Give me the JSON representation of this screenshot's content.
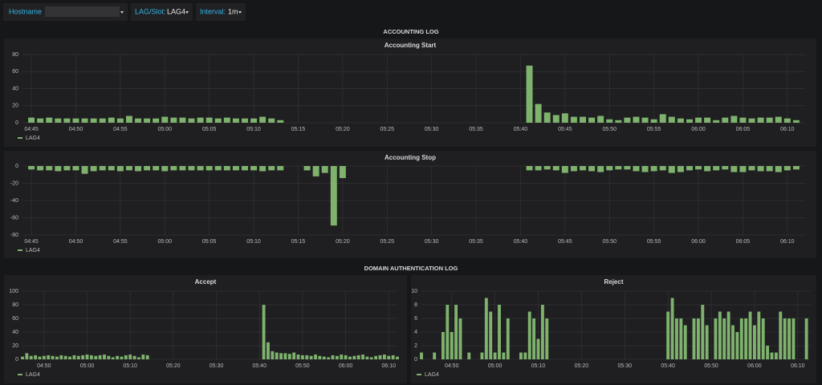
{
  "toolbar": [
    {
      "label": "Hostname"
    },
    {
      "label": "LAG/Slot:",
      "value": "LAG4"
    },
    {
      "label": "Interval:",
      "value": "1m"
    }
  ],
  "sections": [
    "ACCOUNTING LOG",
    "DOMAIN AUTHENTICATION LOG"
  ],
  "chart_data": [
    {
      "type": "bar",
      "title": "Accounting Start",
      "ylim": [
        0,
        80
      ],
      "yticks": [
        0,
        20,
        40,
        60,
        80
      ],
      "xlim": [
        "04:44",
        "06:12"
      ],
      "xticks": [
        "04:45",
        "04:50",
        "04:55",
        "05:00",
        "05:05",
        "05:10",
        "05:15",
        "05:20",
        "05:25",
        "05:30",
        "05:35",
        "05:40",
        "05:45",
        "05:50",
        "05:55",
        "06:00",
        "06:05",
        "06:10"
      ],
      "grid": true,
      "x": [
        "04:45",
        "04:46",
        "04:47",
        "04:48",
        "04:49",
        "04:50",
        "04:51",
        "04:52",
        "04:53",
        "04:54",
        "04:55",
        "04:56",
        "04:57",
        "04:58",
        "04:59",
        "05:00",
        "05:01",
        "05:02",
        "05:03",
        "05:04",
        "05:05",
        "05:06",
        "05:07",
        "05:08",
        "05:09",
        "05:10",
        "05:11",
        "05:12",
        "05:13",
        "05:41",
        "05:42",
        "05:43",
        "05:44",
        "05:45",
        "05:46",
        "05:47",
        "05:48",
        "05:49",
        "05:50",
        "05:51",
        "05:52",
        "05:53",
        "05:54",
        "05:55",
        "05:56",
        "05:57",
        "05:58",
        "05:59",
        "06:00",
        "06:01",
        "06:02",
        "06:03",
        "06:04",
        "06:05",
        "06:06",
        "06:07",
        "06:08",
        "06:09",
        "06:10",
        "06:11"
      ],
      "series": [
        {
          "name": "LAG4",
          "color": "#7eb26d",
          "values": [
            6,
            5,
            6,
            5,
            5,
            5,
            5,
            5,
            5,
            6,
            5,
            8,
            5,
            5,
            5,
            7,
            6,
            6,
            5,
            6,
            6,
            5,
            6,
            5,
            5,
            5,
            7,
            5,
            3,
            67,
            22,
            12,
            9,
            11,
            7,
            7,
            6,
            8,
            4,
            3,
            6,
            7,
            6,
            4,
            10,
            7,
            5,
            4,
            6,
            6,
            3,
            6,
            8,
            6,
            5,
            6,
            6,
            7,
            5,
            3
          ]
        }
      ]
    },
    {
      "type": "bar",
      "title": "Accounting Stop",
      "ylim": [
        -80,
        0
      ],
      "yticks": [
        0,
        -20,
        -40,
        -60,
        -80
      ],
      "xlim": [
        "04:44",
        "06:12"
      ],
      "xticks": [
        "04:45",
        "04:50",
        "04:55",
        "05:00",
        "05:05",
        "05:10",
        "05:15",
        "05:20",
        "05:25",
        "05:30",
        "05:35",
        "05:40",
        "05:45",
        "05:50",
        "05:55",
        "06:00",
        "06:05",
        "06:10"
      ],
      "grid": true,
      "x": [
        "04:45",
        "04:46",
        "04:47",
        "04:48",
        "04:49",
        "04:50",
        "04:51",
        "04:52",
        "04:53",
        "04:54",
        "04:55",
        "04:56",
        "04:57",
        "04:58",
        "04:59",
        "05:00",
        "05:01",
        "05:02",
        "05:03",
        "05:04",
        "05:05",
        "05:06",
        "05:07",
        "05:08",
        "05:09",
        "05:10",
        "05:11",
        "05:12",
        "05:13",
        "05:16",
        "05:17",
        "05:18",
        "05:19",
        "05:20",
        "05:41",
        "05:42",
        "05:43",
        "05:44",
        "05:45",
        "05:46",
        "05:47",
        "05:48",
        "05:49",
        "05:50",
        "05:51",
        "05:52",
        "05:53",
        "05:54",
        "05:55",
        "05:56",
        "05:57",
        "05:58",
        "05:59",
        "06:00",
        "06:01",
        "06:02",
        "06:03",
        "06:04",
        "06:05",
        "06:06",
        "06:07",
        "06:08",
        "06:09",
        "06:10",
        "06:11"
      ],
      "series": [
        {
          "name": "LAG4",
          "color": "#7eb26d",
          "values": [
            -4,
            -5,
            -5,
            -6,
            -5,
            -5,
            -9,
            -6,
            -5,
            -5,
            -6,
            -5,
            -6,
            -5,
            -5,
            -6,
            -5,
            -5,
            -5,
            -5,
            -5,
            -5,
            -5,
            -5,
            -5,
            -5,
            -6,
            -5,
            -5,
            -5,
            -12,
            -8,
            -69,
            -14,
            -5,
            -5,
            -4,
            -5,
            -8,
            -6,
            -5,
            -6,
            -7,
            -5,
            -4,
            -4,
            -6,
            -7,
            -6,
            -5,
            -8,
            -7,
            -5,
            -4,
            -6,
            -5,
            -4,
            -7,
            -7,
            -5,
            -6,
            -6,
            -7,
            -5,
            -4
          ]
        }
      ]
    },
    {
      "type": "bar",
      "title": "Accept",
      "ylim": [
        0,
        100
      ],
      "yticks": [
        0,
        20,
        40,
        60,
        80,
        100
      ],
      "xlim": [
        "04:45",
        "06:12"
      ],
      "xticks": [
        "04:50",
        "05:00",
        "05:10",
        "05:20",
        "05:30",
        "05:40",
        "05:50",
        "06:00",
        "06:10"
      ],
      "grid": true,
      "x": [
        "04:45",
        "04:46",
        "04:47",
        "04:48",
        "04:49",
        "04:50",
        "04:51",
        "04:52",
        "04:53",
        "04:54",
        "04:55",
        "04:56",
        "04:57",
        "04:58",
        "04:59",
        "05:00",
        "05:01",
        "05:02",
        "05:03",
        "05:04",
        "05:05",
        "05:06",
        "05:07",
        "05:08",
        "05:09",
        "05:10",
        "05:11",
        "05:12",
        "05:13",
        "05:14",
        "05:41",
        "05:42",
        "05:43",
        "05:44",
        "05:45",
        "05:46",
        "05:47",
        "05:48",
        "05:49",
        "05:50",
        "05:51",
        "05:52",
        "05:53",
        "05:54",
        "05:55",
        "05:56",
        "05:57",
        "05:58",
        "05:59",
        "06:00",
        "06:01",
        "06:02",
        "06:03",
        "06:04",
        "06:05",
        "06:06",
        "06:07",
        "06:08",
        "06:09",
        "06:10",
        "06:11",
        "06:12"
      ],
      "series": [
        {
          "name": "LAG4",
          "color": "#7eb26d",
          "values": [
            4,
            9,
            5,
            6,
            4,
            5,
            6,
            5,
            4,
            6,
            5,
            4,
            6,
            5,
            6,
            7,
            6,
            5,
            6,
            7,
            5,
            3,
            5,
            4,
            6,
            7,
            5,
            3,
            7,
            6,
            80,
            25,
            12,
            10,
            9,
            9,
            8,
            10,
            7,
            6,
            6,
            5,
            7,
            5,
            4,
            3,
            6,
            5,
            7,
            6,
            4,
            5,
            6,
            7,
            4,
            3,
            5,
            6,
            7,
            5,
            6,
            4
          ]
        }
      ]
    },
    {
      "type": "bar",
      "title": "Reject",
      "ylim": [
        0,
        10
      ],
      "yticks": [
        0,
        2,
        4,
        6,
        8,
        10
      ],
      "xlim": [
        "04:43",
        "06:13"
      ],
      "xticks": [
        "04:50",
        "05:00",
        "05:10",
        "05:20",
        "05:30",
        "05:40",
        "05:50",
        "06:00",
        "06:10"
      ],
      "grid": true,
      "x": [
        "04:43",
        "04:46",
        "04:48",
        "04:49",
        "04:50",
        "04:51",
        "04:52",
        "04:54",
        "04:57",
        "04:58",
        "04:59",
        "05:00",
        "05:01",
        "05:02",
        "05:03",
        "05:06",
        "05:07",
        "05:08",
        "05:09",
        "05:10",
        "05:11",
        "05:12",
        "05:40",
        "05:41",
        "05:42",
        "05:43",
        "05:44",
        "05:46",
        "05:47",
        "05:48",
        "05:49",
        "05:51",
        "05:52",
        "05:53",
        "05:54",
        "05:55",
        "05:56",
        "05:57",
        "05:58",
        "05:59",
        "06:00",
        "06:01",
        "06:02",
        "06:03",
        "06:04",
        "06:05",
        "06:06",
        "06:07",
        "06:08",
        "06:09",
        "06:12"
      ],
      "series": [
        {
          "name": "LAG4",
          "color": "#7eb26d",
          "values": [
            1,
            1,
            4,
            8,
            4,
            8,
            6,
            1,
            1,
            9,
            7,
            1,
            8,
            1,
            6,
            1,
            1,
            7,
            6,
            3,
            8,
            6,
            7,
            9,
            6,
            6,
            5,
            6,
            6,
            8,
            5,
            6,
            7,
            6,
            7,
            5,
            4,
            6,
            6,
            7,
            5,
            7,
            6,
            2,
            1,
            1,
            7,
            6,
            6,
            6,
            6
          ]
        }
      ]
    }
  ]
}
